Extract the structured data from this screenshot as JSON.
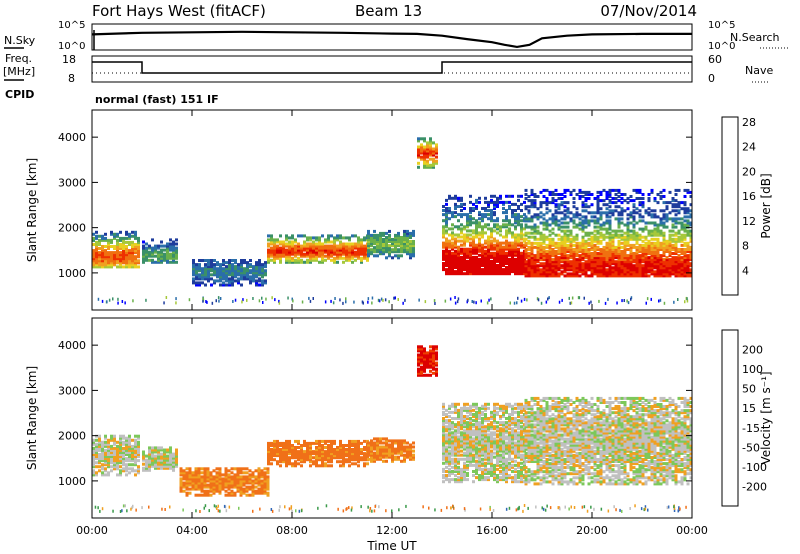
{
  "header": {
    "station": "Fort Hays West (fitACF)",
    "beam": "Beam 13",
    "date": "07/Nov/2014"
  },
  "side_labels": {
    "nsky": "N.Sky",
    "freq_line1": "Freq.",
    "freq_line2": "[MHz]",
    "cpid": "CPID",
    "nsearch": "N.Search",
    "nave": "Nave"
  },
  "mode_label": "normal (fast) 151 IF",
  "time_axis": {
    "label": "Time UT",
    "ticks": [
      "00:00",
      "04:00",
      "08:00",
      "12:00",
      "16:00",
      "20:00",
      "00:00"
    ]
  },
  "chart_data": [
    {
      "type": "line",
      "name": "noise",
      "y_left_ticks": [
        "10^5",
        "10^0"
      ],
      "y_right_ticks": [
        "10^5",
        "10^0"
      ],
      "x_hours": [
        0,
        2,
        4,
        6,
        8,
        10,
        12,
        13,
        14,
        15,
        16,
        16.5,
        17,
        17.5,
        18,
        19,
        20,
        22,
        24
      ],
      "values": [
        0.6,
        0.66,
        0.68,
        0.7,
        0.68,
        0.66,
        0.63,
        0.62,
        0.55,
        0.42,
        0.3,
        0.2,
        0.12,
        0.2,
        0.45,
        0.55,
        0.6,
        0.62,
        0.62
      ]
    },
    {
      "type": "line",
      "name": "frequency",
      "y_left_ticks": [
        "18",
        "8"
      ],
      "y_right_ticks": [
        "60",
        "0"
      ],
      "segments": [
        {
          "x_start": 0,
          "x_end": 2,
          "level": "high"
        },
        {
          "x_start": 2,
          "x_end": 14,
          "level": "low"
        },
        {
          "x_start": 14,
          "x_end": 24,
          "level": "high"
        }
      ]
    },
    {
      "type": "heatmap",
      "name": "power",
      "ylabel": "Slant Range [km]",
      "yticks": [
        1000,
        2000,
        3000,
        4000
      ],
      "ylim": [
        180,
        4600
      ],
      "xlim": [
        0,
        24
      ],
      "colorbar": {
        "label": "Power [dB]",
        "ticks": [
          4,
          8,
          12,
          16,
          20,
          24,
          28
        ]
      },
      "bands": [
        {
          "x0": 0.0,
          "x1": 1.9,
          "r_lo": 1100,
          "r_hi": 1900,
          "peak": 1350,
          "amp": 0.75
        },
        {
          "x0": 2.0,
          "x1": 3.4,
          "r_lo": 1200,
          "r_hi": 1700,
          "peak": 1350,
          "amp": 0.3
        },
        {
          "x0": 4.0,
          "x1": 7.0,
          "r_lo": 700,
          "r_hi": 1250,
          "peak": 1000,
          "amp": 0.2
        },
        {
          "x0": 7.0,
          "x1": 11.0,
          "r_lo": 1200,
          "r_hi": 1800,
          "peak": 1450,
          "amp": 0.8
        },
        {
          "x0": 11.0,
          "x1": 12.9,
          "r_lo": 1300,
          "r_hi": 1900,
          "peak": 1600,
          "amp": 0.35
        },
        {
          "x0": 13.0,
          "x1": 13.8,
          "r_lo": 3300,
          "r_hi": 3950,
          "peak": 3600,
          "amp": 0.8
        },
        {
          "x0": 14.0,
          "x1": 17.3,
          "r_lo": 950,
          "r_hi": 2700,
          "peak": 1150,
          "amp": 0.95
        },
        {
          "x0": 17.3,
          "x1": 24.0,
          "r_lo": 900,
          "r_hi": 2800,
          "peak": 1050,
          "amp": 0.85
        }
      ]
    },
    {
      "type": "heatmap",
      "name": "velocity",
      "ylabel": "Slant Range [km]",
      "yticks": [
        1000,
        2000,
        3000,
        4000
      ],
      "ylim": [
        180,
        4600
      ],
      "xlim": [
        0,
        24
      ],
      "colorbar": {
        "label": "Velocity [m s⁻¹]",
        "ticks": [
          200,
          100,
          50,
          15,
          -15,
          -50,
          -100,
          -200
        ]
      },
      "bands": [
        {
          "x0": 0.0,
          "x1": 1.9,
          "r_lo": 1100,
          "r_hi": 2000,
          "vel": 0
        },
        {
          "x0": 2.0,
          "x1": 3.4,
          "r_lo": 1200,
          "r_hi": 1700,
          "vel": 0
        },
        {
          "x0": 3.5,
          "x1": 7.0,
          "r_lo": 650,
          "r_hi": 1250,
          "vel": -60
        },
        {
          "x0": 7.0,
          "x1": 11.0,
          "r_lo": 1300,
          "r_hi": 1850,
          "vel": -70
        },
        {
          "x0": 11.0,
          "x1": 12.9,
          "r_lo": 1400,
          "r_hi": 1900,
          "vel": -60
        },
        {
          "x0": 13.0,
          "x1": 13.8,
          "r_lo": 3300,
          "r_hi": 3950,
          "vel": -160
        },
        {
          "x0": 14.0,
          "x1": 17.3,
          "r_lo": 950,
          "r_hi": 2700,
          "vel": 0
        },
        {
          "x0": 17.3,
          "x1": 24.0,
          "r_lo": 900,
          "r_hi": 2800,
          "vel": 0
        }
      ]
    }
  ]
}
